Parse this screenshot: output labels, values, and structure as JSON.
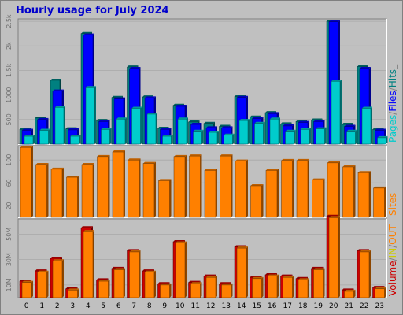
{
  "chart_data": [
    {
      "type": "bar",
      "title": "Hourly usage for July 2024",
      "categories": [
        "0",
        "1",
        "2",
        "3",
        "4",
        "5",
        "6",
        "7",
        "8",
        "9",
        "10",
        "11",
        "12",
        "13",
        "14",
        "15",
        "16",
        "17",
        "18",
        "19",
        "20",
        "21",
        "22",
        "23"
      ],
      "legend": [
        {
          "text": "Pages",
          "color": "#00cccc"
        },
        {
          "text": "/",
          "color": "#808080"
        },
        {
          "text": "Files",
          "color": "#0000ff"
        },
        {
          "text": "/",
          "color": "#808080"
        },
        {
          "text": "Hits",
          "color": "#008080"
        },
        {
          "text": "_",
          "color": "#808080"
        }
      ],
      "ylim": [
        0,
        2550
      ],
      "yticks": [
        500,
        1000,
        1500,
        2000,
        2500
      ],
      "ytick_labels": [
        "500",
        "1000",
        "1.5k",
        "2k",
        "2.5k"
      ],
      "series": [
        {
          "name": "Hits",
          "color": "#008080",
          "values": [
            300,
            530,
            1300,
            310,
            2250,
            480,
            950,
            1570,
            960,
            320,
            790,
            450,
            420,
            360,
            970,
            550,
            640,
            410,
            460,
            490,
            2500,
            400,
            1580,
            300
          ]
        },
        {
          "name": "Files",
          "color": "#0000ff",
          "values": [
            280,
            500,
            1080,
            290,
            2220,
            460,
            920,
            1540,
            940,
            300,
            770,
            400,
            330,
            330,
            950,
            520,
            620,
            370,
            440,
            460,
            2490,
            360,
            1540,
            280
          ]
        },
        {
          "name": "Pages",
          "color": "#00cccc",
          "values": [
            160,
            280,
            750,
            160,
            1150,
            300,
            510,
            730,
            610,
            160,
            510,
            260,
            240,
            180,
            480,
            420,
            510,
            260,
            300,
            310,
            1280,
            260,
            730,
            130
          ]
        }
      ]
    },
    {
      "type": "bar",
      "categories": [
        "0",
        "1",
        "2",
        "3",
        "4",
        "5",
        "6",
        "7",
        "8",
        "9",
        "10",
        "11",
        "12",
        "13",
        "14",
        "15",
        "16",
        "17",
        "18",
        "19",
        "20",
        "21",
        "22",
        "23"
      ],
      "legend": [
        {
          "text": "Sites",
          "color": "#ff8000"
        }
      ],
      "ylim": [
        0,
        125
      ],
      "yticks": [
        20,
        60,
        100
      ],
      "ytick_labels": [
        "20",
        "60",
        "100"
      ],
      "series": [
        {
          "name": "Sites",
          "color": "#ff8000",
          "values": [
            122,
            92,
            84,
            70,
            92,
            106,
            114,
            100,
            94,
            64,
            106,
            107,
            82,
            107,
            98,
            55,
            82,
            99,
            99,
            65,
            95,
            88,
            78,
            51
          ]
        }
      ]
    },
    {
      "type": "bar",
      "categories": [
        "0",
        "1",
        "2",
        "3",
        "4",
        "5",
        "6",
        "7",
        "8",
        "9",
        "10",
        "11",
        "12",
        "13",
        "14",
        "15",
        "16",
        "17",
        "18",
        "19",
        "20",
        "21",
        "22",
        "23"
      ],
      "legend": [
        {
          "text": "Volume",
          "color": "#cc0000"
        },
        {
          "text": "/",
          "color": "#808080"
        },
        {
          "text": "IN",
          "color": "#cccc00"
        },
        {
          "text": "/",
          "color": "#808080"
        },
        {
          "text": "OUT",
          "color": "#ff8000"
        }
      ],
      "ylim": [
        0,
        62
      ],
      "yticks": [
        10,
        30,
        50
      ],
      "ytick_labels": [
        "10M",
        "30M",
        "50M"
      ],
      "series": [
        {
          "name": "Volume",
          "color": "#cc0000",
          "values": [
            13,
            21,
            31,
            7,
            55,
            14,
            23,
            37,
            21,
            11,
            44,
            12,
            17,
            11,
            40,
            16,
            18,
            17,
            15,
            23,
            64,
            6,
            37,
            8
          ]
        },
        {
          "name": "OUT",
          "color": "#ff8000",
          "values": [
            12,
            20,
            29,
            6,
            52,
            13,
            22,
            36,
            20,
            10,
            43,
            11,
            16,
            10,
            39,
            15,
            17,
            16,
            14,
            22,
            63,
            5,
            36,
            7
          ]
        }
      ]
    }
  ]
}
